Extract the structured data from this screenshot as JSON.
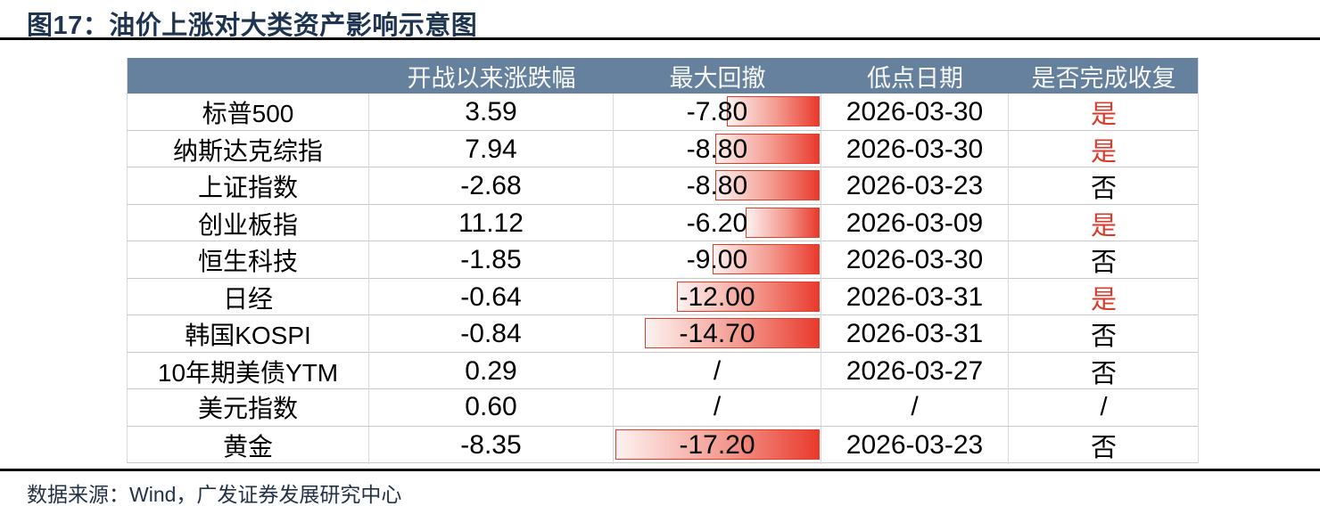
{
  "title": "图17：油价上涨对大类资产影响示意图",
  "source": "数据来源：Wind，广发证券发展研究中心",
  "colors": {
    "title_navy": "#1E3450",
    "header_bg": "#66819E",
    "bar_red": "#E93A2D",
    "bar_border": "#E0402B",
    "yes_red": "#D93A2B",
    "grid_line": "#C8C8C8"
  },
  "chart_data": {
    "type": "table",
    "title": "油价上涨对大类资产影响示意图",
    "columns": [
      "",
      "开战以来涨跌幅",
      "最大回撤",
      "低点日期",
      "是否完成收复"
    ],
    "bar_column": "最大回撤",
    "bar_max_abs": 17.2,
    "rows": [
      {
        "name": "标普500",
        "change": "3.59",
        "drawdown": "-7.80",
        "drawdown_value": -7.8,
        "low_date": "2026-03-30",
        "recovered": "是"
      },
      {
        "name": "纳斯达克综指",
        "change": "7.94",
        "drawdown": "-8.80",
        "drawdown_value": -8.8,
        "low_date": "2026-03-30",
        "recovered": "是"
      },
      {
        "name": "上证指数",
        "change": "-2.68",
        "drawdown": "-8.80",
        "drawdown_value": -8.8,
        "low_date": "2026-03-23",
        "recovered": "否"
      },
      {
        "name": "创业板指",
        "change": "11.12",
        "drawdown": "-6.20",
        "drawdown_value": -6.2,
        "low_date": "2026-03-09",
        "recovered": "是"
      },
      {
        "name": "恒生科技",
        "change": "-1.85",
        "drawdown": "-9.00",
        "drawdown_value": -9.0,
        "low_date": "2026-03-30",
        "recovered": "否"
      },
      {
        "name": "日经",
        "change": "-0.64",
        "drawdown": "-12.00",
        "drawdown_value": -12.0,
        "low_date": "2026-03-31",
        "recovered": "是"
      },
      {
        "name": "韩国KOSPI",
        "change": "-0.84",
        "drawdown": "-14.70",
        "drawdown_value": -14.7,
        "low_date": "2026-03-31",
        "recovered": "否"
      },
      {
        "name": "10年期美债YTM",
        "change": "0.29",
        "drawdown": "/",
        "drawdown_value": null,
        "low_date": "2026-03-27",
        "recovered": "否"
      },
      {
        "name": "美元指数",
        "change": "0.60",
        "drawdown": "/",
        "drawdown_value": null,
        "low_date": "/",
        "recovered": "/"
      },
      {
        "name": "黄金",
        "change": "-8.35",
        "drawdown": "-17.20",
        "drawdown_value": -17.2,
        "low_date": "2026-03-23",
        "recovered": "否"
      }
    ]
  }
}
